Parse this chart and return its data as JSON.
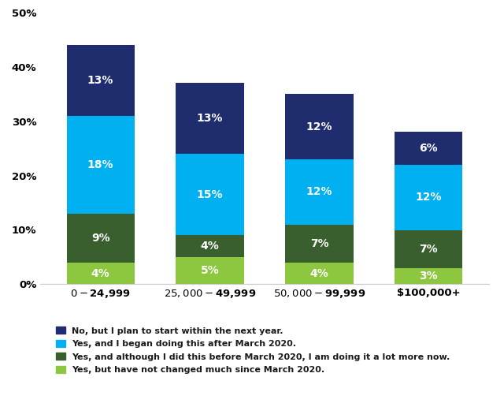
{
  "categories": [
    "$0-$24,999",
    "$25,000-$49,999",
    "$50,000-$99,999",
    "$100,000+"
  ],
  "series": [
    {
      "label": "Yes, but have not changed much since March 2020.",
      "values": [
        4,
        5,
        4,
        3
      ],
      "color": "#8dc63f"
    },
    {
      "label": "Yes, and although I did this before March 2020, I am doing it a lot more now.",
      "values": [
        9,
        4,
        7,
        7
      ],
      "color": "#3a5f2e"
    },
    {
      "label": "Yes, and I began doing this after March 2020.",
      "values": [
        18,
        15,
        12,
        12
      ],
      "color": "#00b0f0"
    },
    {
      "label": "No, but I plan to start within the next year.",
      "values": [
        13,
        13,
        12,
        6
      ],
      "color": "#1f2d6e"
    }
  ],
  "legend_order": [
    3,
    2,
    1,
    0
  ],
  "ylim": [
    0,
    50
  ],
  "yticks": [
    0,
    10,
    20,
    30,
    40,
    50
  ],
  "ytick_labels": [
    "0%",
    "10%",
    "20%",
    "30%",
    "40%",
    "50%"
  ],
  "bar_width": 0.62,
  "background_color": "#ffffff",
  "label_color": "#ffffff",
  "label_fontsize": 10,
  "tick_label_color": "#000000",
  "tick_label_fontsize": 9.5
}
